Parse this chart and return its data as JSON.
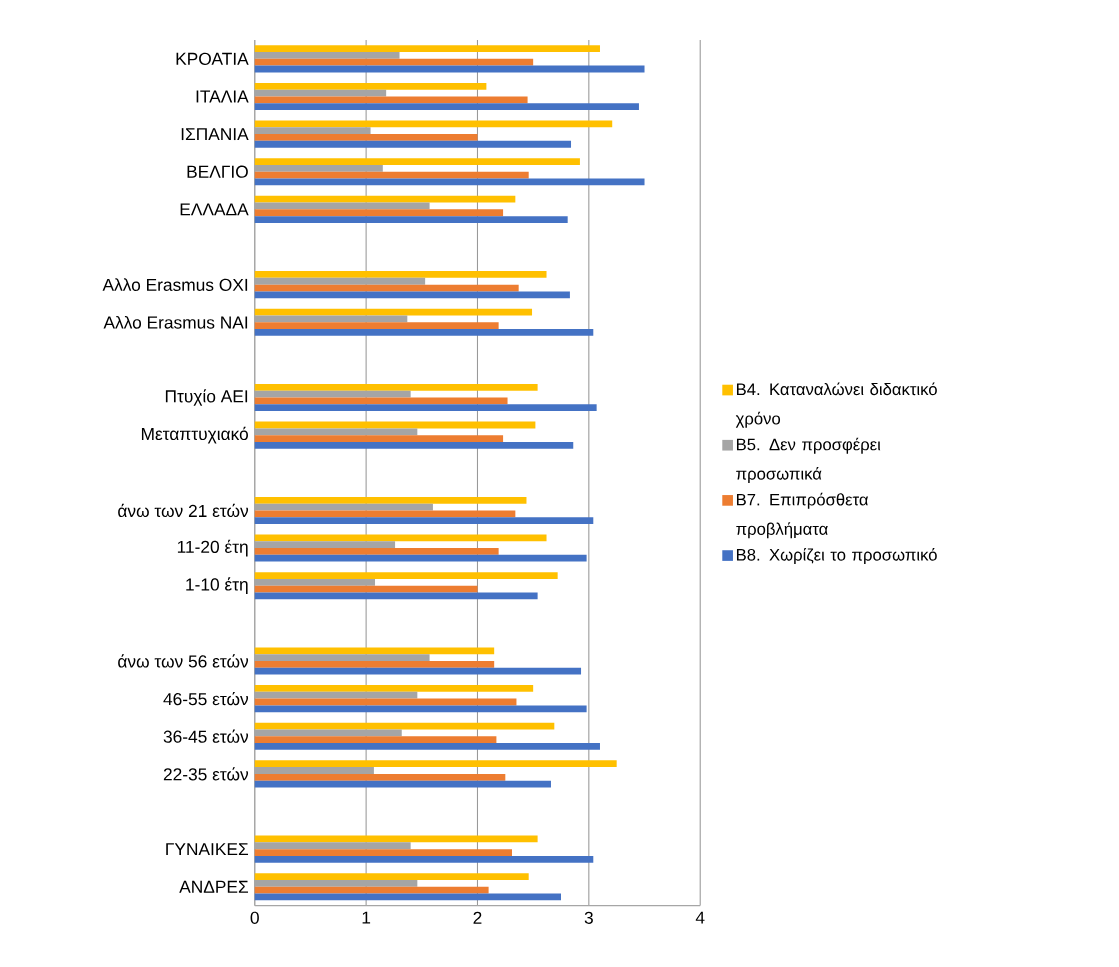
{
  "chart_data": {
    "type": "bar",
    "orientation": "horizontal",
    "categories": [
      "ΚΡΟΑΤΙΑ",
      "ΙΤΑΛΙΑ",
      "ΙΣΠΑΝΙΑ",
      "ΒΕΛΓΙΟ",
      "ΕΛΛΑΔΑ",
      null,
      "Αλλο Erasmus ΟΧΙ",
      "Αλλο Erasmus ΝΑΙ",
      null,
      "Πτυχίο ΑΕΙ",
      "Μεταπτυχιακό",
      null,
      "άνω των 21 ετών",
      "11-20 έτη",
      "1-10 έτη",
      null,
      "άνω των 56 ετών",
      "46-55 ετών",
      "36-45 ετών",
      "22-35 ετών",
      null,
      "ΓΥΝΑΙΚΕΣ",
      "ΑΝΔΡΕΣ"
    ],
    "series": [
      {
        "name": "B4. Καταναλώνει διδακτικό χρόνο",
        "color": "#ffc000",
        "values": [
          3.1,
          2.08,
          3.21,
          2.92,
          2.34,
          null,
          2.62,
          2.49,
          null,
          2.54,
          2.52,
          null,
          2.44,
          2.62,
          2.72,
          null,
          2.15,
          2.5,
          2.69,
          3.25,
          null,
          2.54,
          2.46
        ]
      },
      {
        "name": "B5. Δεν προσφέρει προσωπικά",
        "color": "#a5a5a5",
        "values": [
          1.3,
          1.18,
          1.04,
          1.15,
          1.57,
          null,
          1.53,
          1.37,
          null,
          1.4,
          1.46,
          null,
          1.6,
          1.26,
          1.08,
          null,
          1.57,
          1.46,
          1.32,
          1.07,
          null,
          1.4,
          1.46
        ]
      },
      {
        "name": "B7. Επιπρόσθετα προβλήματα",
        "color": "#ed7d31",
        "values": [
          2.5,
          2.45,
          2.0,
          2.46,
          2.23,
          null,
          2.37,
          2.19,
          null,
          2.27,
          2.23,
          null,
          2.34,
          2.19,
          2.0,
          null,
          2.15,
          2.35,
          2.17,
          2.25,
          null,
          2.31,
          2.1
        ]
      },
      {
        "name": "B8. Χωρίζει το προσωπικό",
        "color": "#4472c4",
        "values": [
          3.5,
          3.45,
          2.84,
          3.5,
          2.81,
          null,
          2.83,
          3.04,
          null,
          3.07,
          2.86,
          null,
          3.04,
          2.98,
          2.54,
          null,
          2.93,
          2.98,
          3.1,
          2.66,
          null,
          3.04,
          2.75
        ]
      }
    ],
    "xlim": [
      0,
      4
    ],
    "xticks": [
      0,
      1,
      2,
      3,
      4
    ],
    "grid": "x",
    "legend": "right"
  }
}
